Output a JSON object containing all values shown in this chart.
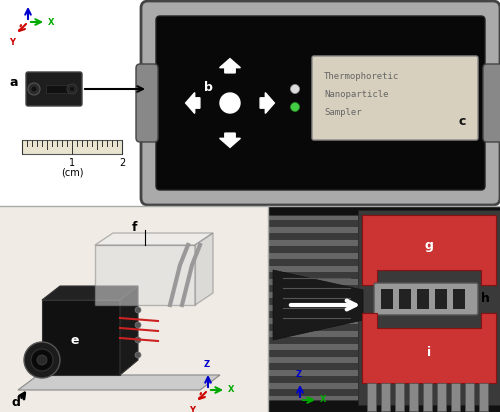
{
  "bg_color": "#ffffff",
  "device_frame_color": "#999999",
  "device_inner_bg": "#0d0d0d",
  "screen_bg": "#d8d0be",
  "screen_text": [
    "Thermophoretic",
    "Nanoparticle",
    "Sampler"
  ],
  "screen_text_color": "#666666",
  "hot_plate_color": "#cc3333",
  "cold_plate_color": "#cc3333",
  "grid_holder_color": "#bbbbbb",
  "bottom_left_bg": "#f0ebe4",
  "bottom_right_bg": "#111111",
  "divider_color": "#aaaaaa",
  "labels": {
    "a": "a",
    "b": "b",
    "c": "c",
    "d": "d",
    "e": "e",
    "f": "f",
    "g": "g",
    "h": "h",
    "i": "i"
  },
  "axis_x": "#00aa00",
  "axis_y": "#cc0000",
  "axis_z": "#0000cc"
}
